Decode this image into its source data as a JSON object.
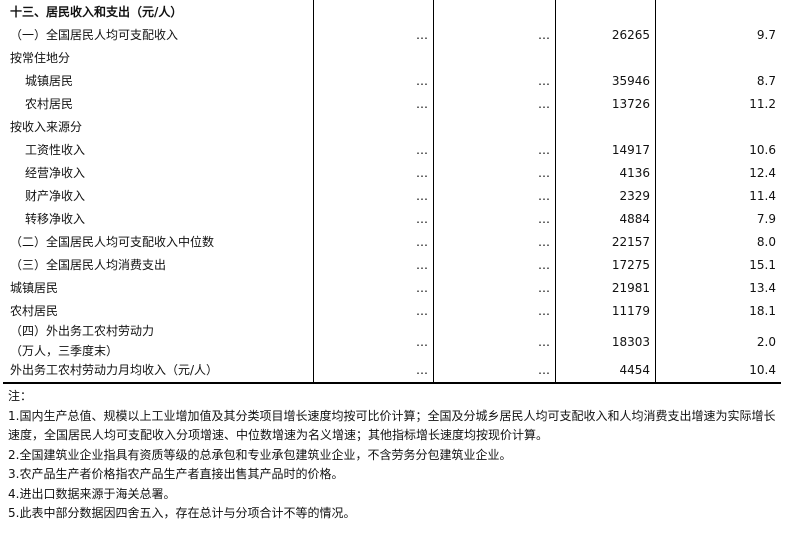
{
  "title": "十三、居民收入和支出（元/人）",
  "rows": [
    {
      "label": "（一）全国居民人均可支配收入",
      "c1": "…",
      "c2": "…",
      "c3": "26265",
      "c4": "9.7",
      "indent": false
    },
    {
      "label": "按常住地分",
      "c1": "",
      "c2": "",
      "c3": "",
      "c4": "",
      "indent": false
    },
    {
      "label": "城镇居民",
      "c1": "…",
      "c2": "…",
      "c3": "35946",
      "c4": "8.7",
      "indent": true
    },
    {
      "label": "农村居民",
      "c1": "…",
      "c2": "…",
      "c3": "13726",
      "c4": "11.2",
      "indent": true
    },
    {
      "label": "按收入来源分",
      "c1": "",
      "c2": "",
      "c3": "",
      "c4": "",
      "indent": false
    },
    {
      "label": "工资性收入",
      "c1": "…",
      "c2": "…",
      "c3": "14917",
      "c4": "10.6",
      "indent": true
    },
    {
      "label": "经营净收入",
      "c1": "…",
      "c2": "…",
      "c3": "4136",
      "c4": "12.4",
      "indent": true
    },
    {
      "label": "财产净收入",
      "c1": "…",
      "c2": "…",
      "c3": "2329",
      "c4": "11.4",
      "indent": true
    },
    {
      "label": "转移净收入",
      "c1": "…",
      "c2": "…",
      "c3": "4884",
      "c4": "7.9",
      "indent": true
    },
    {
      "label": "（二）全国居民人均可支配收入中位数",
      "c1": "…",
      "c2": "…",
      "c3": "22157",
      "c4": "8.0",
      "indent": false
    },
    {
      "label": "（三）全国居民人均消费支出",
      "c1": "…",
      "c2": "…",
      "c3": "17275",
      "c4": "15.1",
      "indent": false
    },
    {
      "label": "城镇居民",
      "c1": "…",
      "c2": "…",
      "c3": "21981",
      "c4": "13.4",
      "indent": false
    },
    {
      "label": "农村居民",
      "c1": "…",
      "c2": "…",
      "c3": "11179",
      "c4": "18.1",
      "indent": false
    }
  ],
  "row_four": {
    "label1": "（四）外出务工农村劳动力",
    "label2": "（万人，三季度末）",
    "c1": "…",
    "c2": "…",
    "c3": "18303",
    "c4": "2.0"
  },
  "row_last": {
    "label": "外出务工农村劳动力月均收入（元/人）",
    "c1": "…",
    "c2": "…",
    "c3": "4454",
    "c4": "10.4"
  },
  "notes": {
    "heading": "注：",
    "items": [
      "1.国内生产总值、规模以上工业增加值及其分类项目增长速度均按可比价计算；全国及分城乡居民人均可支配收入和人均消费支出增速为实际增长速度，全国居民人均可支配收入分项增速、中位数增速为名义增速；其他指标增长速度均按现价计算。",
      "2.全国建筑业企业指具有资质等级的总承包和专业承包建筑业企业，不含劳务分包建筑业企业。",
      "3.农产品生产者价格指农产品生产者直接出售其产品时的价格。",
      "4.进出口数据来源于海关总署。",
      "5.此表中部分数据因四舍五入，存在总计与分项合计不等的情况。"
    ]
  }
}
